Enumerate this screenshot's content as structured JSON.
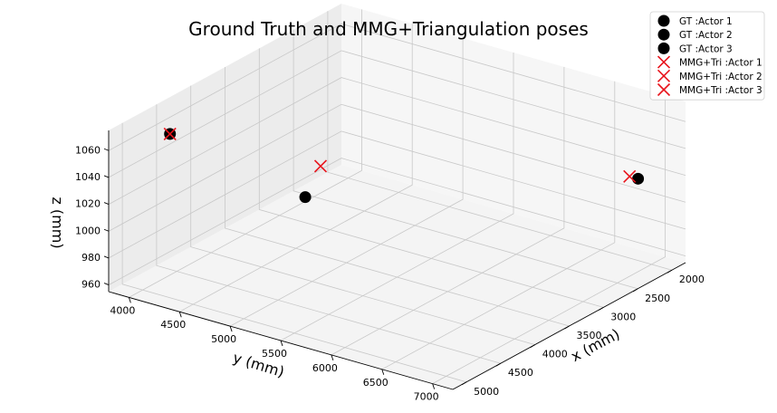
{
  "chart_data": {
    "type": "scatter",
    "projection": "3d",
    "title": "Ground Truth and MMG+Triangulation poses",
    "xlabel": "x (mm)",
    "ylabel": "y (mm)",
    "zlabel": "z (mm)",
    "xlim": [
      1800,
      5200
    ],
    "ylim": [
      3800,
      7200
    ],
    "zlim": [
      955,
      1075
    ],
    "xticks": [
      "2000",
      "2500",
      "3000",
      "3500",
      "4000",
      "4500",
      "5000"
    ],
    "yticks": [
      "4000",
      "4500",
      "5000",
      "5500",
      "6000",
      "6500",
      "7000"
    ],
    "zticks": [
      "960",
      "980",
      "1000",
      "1020",
      "1040",
      "1060"
    ],
    "grid": true,
    "legend_position": "top-right",
    "series": [
      {
        "name": "GT :Actor 1",
        "marker": "circle",
        "color": "#000000",
        "points": [
          {
            "x": 2050,
            "y": 6900,
            "z": 1018
          }
        ]
      },
      {
        "name": "GT :Actor 2",
        "marker": "circle",
        "color": "#000000",
        "points": [
          {
            "x": 4600,
            "y": 4000,
            "z": 1060
          }
        ]
      },
      {
        "name": "GT :Actor 3",
        "marker": "circle",
        "color": "#000000",
        "points": [
          {
            "x": 2550,
            "y": 3950,
            "z": 955
          }
        ]
      },
      {
        "name": "MMG+Tri :Actor 1",
        "marker": "x",
        "color": "#e8141c",
        "points": [
          {
            "x": 2100,
            "y": 6850,
            "z": 1020
          }
        ]
      },
      {
        "name": "MMG+Tri :Actor 2",
        "marker": "x",
        "color": "#e8141c",
        "points": [
          {
            "x": 4600,
            "y": 4000,
            "z": 1060
          }
        ]
      },
      {
        "name": "MMG+Tri :Actor 3",
        "marker": "x",
        "color": "#e8141c",
        "points": [
          {
            "x": 2400,
            "y": 4000,
            "z": 975
          }
        ]
      }
    ]
  }
}
